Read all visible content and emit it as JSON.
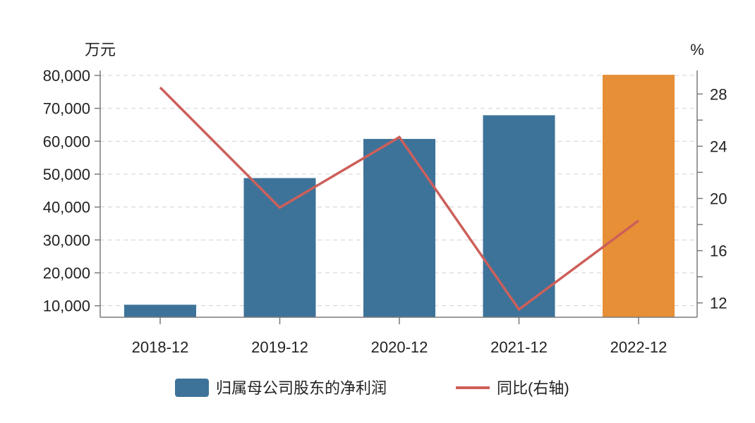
{
  "chart_data": {
    "type": "bar",
    "categories": [
      "2018-12",
      "2019-12",
      "2020-12",
      "2021-12",
      "2022-12"
    ],
    "series": [
      {
        "name": "归属母公司股东的净利润",
        "kind": "bar",
        "axis": "left",
        "values": [
          10300,
          48800,
          60700,
          67900,
          80200
        ],
        "colors": [
          "#3d7399",
          "#3d7399",
          "#3d7399",
          "#3d7399",
          "#e68f37"
        ]
      },
      {
        "name": "同比(右轴)",
        "kind": "line",
        "axis": "right",
        "values": [
          28.5,
          19.3,
          24.7,
          11.5,
          18.3
        ],
        "color": "#cd5f5a"
      }
    ],
    "left_axis": {
      "unit": "万元",
      "ylim": [
        6500,
        81500
      ],
      "ticks": [
        10000,
        20000,
        30000,
        40000,
        50000,
        60000,
        70000,
        80000
      ],
      "tick_labels": [
        "10,000",
        "20,000",
        "30,000",
        "40,000",
        "50,000",
        "60,000",
        "70,000",
        "80,000"
      ]
    },
    "right_axis": {
      "unit": "%",
      "ylim": [
        10.9,
        29.8
      ],
      "major_ticks": [
        12,
        16,
        20,
        24,
        28
      ],
      "tick_labels": [
        "12",
        "16",
        "20",
        "24",
        "28"
      ],
      "minor_ticks": [
        14,
        18,
        22,
        26
      ]
    },
    "grid": "horizontal-dashed",
    "legend_position": "bottom"
  }
}
